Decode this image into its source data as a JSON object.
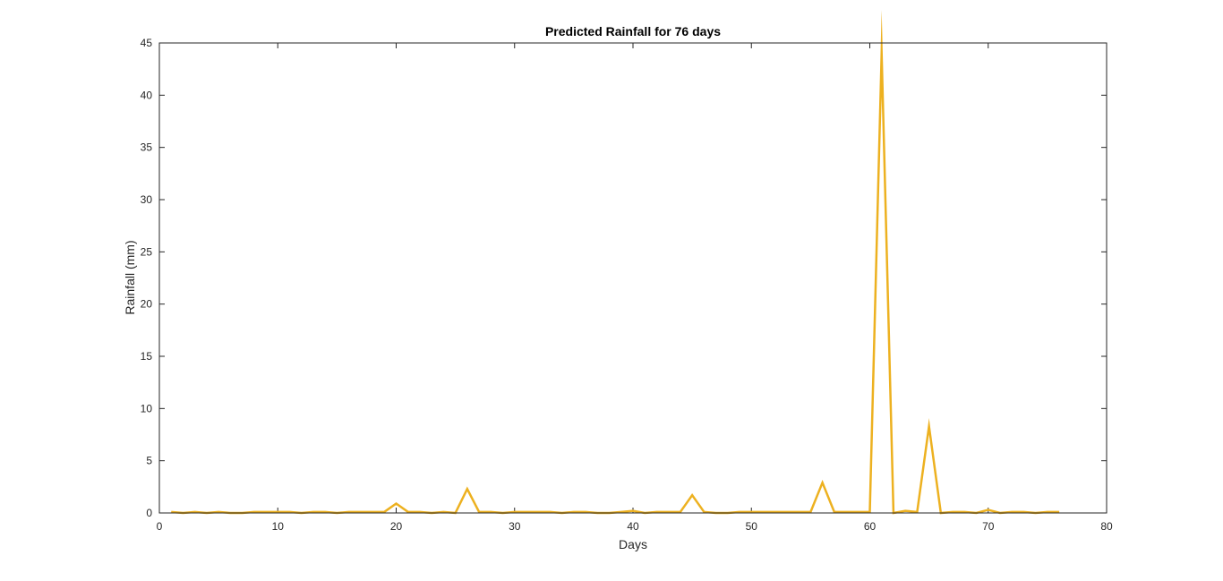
{
  "chart_data": {
    "type": "line",
    "title": "Predicted Rainfall for 76 days",
    "xlabel": "Days",
    "ylabel": "Rainfall (mm)",
    "xlim": [
      0,
      80
    ],
    "ylim": [
      0,
      45
    ],
    "xticks": [
      "0",
      "10",
      "20",
      "30",
      "40",
      "50",
      "60",
      "70",
      "80"
    ],
    "yticks": [
      "0",
      "5",
      "10",
      "15",
      "20",
      "25",
      "30",
      "35",
      "40",
      "45"
    ],
    "grid": false,
    "line_color": "#EDB120",
    "series": [
      {
        "x": [
          1,
          2,
          3,
          4,
          5,
          6,
          7,
          8,
          9,
          10,
          11,
          12,
          13,
          14,
          15,
          16,
          17,
          18,
          19,
          20,
          21,
          22,
          23,
          24,
          25,
          26,
          27,
          28,
          29,
          30,
          31,
          32,
          33,
          34,
          35,
          36,
          37,
          38,
          39,
          40,
          41,
          42,
          43,
          44,
          45,
          46,
          47,
          48,
          49,
          50,
          51,
          52,
          53,
          54,
          55,
          56,
          57,
          58,
          59,
          60,
          61,
          62,
          63,
          64,
          65,
          66,
          67,
          68,
          69,
          70,
          71,
          72,
          73,
          74,
          75,
          76
        ],
        "values": [
          0.1,
          0.0,
          0.1,
          0.0,
          0.1,
          0.0,
          0.0,
          0.1,
          0.1,
          0.1,
          0.1,
          0.0,
          0.1,
          0.1,
          0.0,
          0.1,
          0.1,
          0.1,
          0.1,
          0.9,
          0.1,
          0.1,
          0.0,
          0.1,
          0.0,
          2.3,
          0.1,
          0.1,
          0.0,
          0.1,
          0.1,
          0.1,
          0.1,
          0.0,
          0.1,
          0.1,
          0.0,
          0.0,
          0.1,
          0.2,
          0.0,
          0.1,
          0.1,
          0.1,
          1.7,
          0.1,
          0.0,
          0.0,
          0.1,
          0.1,
          0.1,
          0.1,
          0.1,
          0.1,
          0.1,
          2.9,
          0.1,
          0.1,
          0.1,
          0.1,
          44.0,
          0.0,
          0.2,
          0.1,
          8.3,
          0.0,
          0.1,
          0.1,
          0.0,
          0.3,
          0.0,
          0.1,
          0.1,
          0.0,
          0.1,
          0.1
        ]
      }
    ]
  }
}
